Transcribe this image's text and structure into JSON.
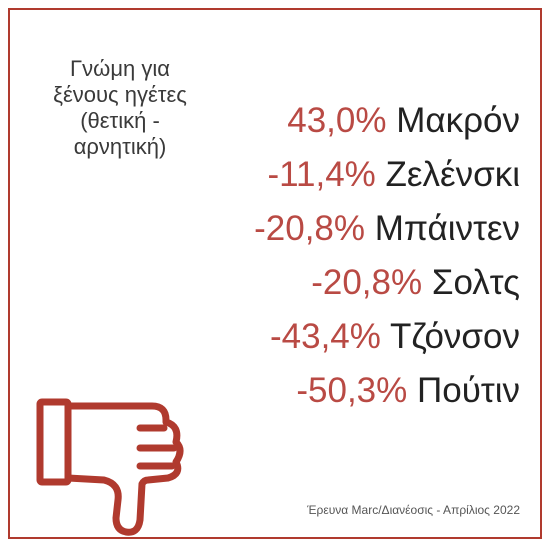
{
  "caption": {
    "lines": [
      "Γνώμη για",
      "ξένους ηγέτες",
      "(θετική -",
      "αρνητική)"
    ]
  },
  "leaders": [
    {
      "pct": "43,0%",
      "name": "Μακρόν"
    },
    {
      "pct": "-11,4%",
      "name": "Ζελένσκι"
    },
    {
      "pct": "-20,8%",
      "name": "Μπάιντεν"
    },
    {
      "pct": "-20,8%",
      "name": "Σολτς"
    },
    {
      "pct": "-43,4%",
      "name": "Τζόνσον"
    },
    {
      "pct": "-50,3%",
      "name": "Πούτιν"
    }
  ],
  "source": "Έρευνα Marc/Διανέοσις - Απρίλιος 2022",
  "colors": {
    "accent": "#b03a2e",
    "percent": "#b94a44",
    "text": "#222222"
  },
  "icon": "thumbs-down-icon"
}
